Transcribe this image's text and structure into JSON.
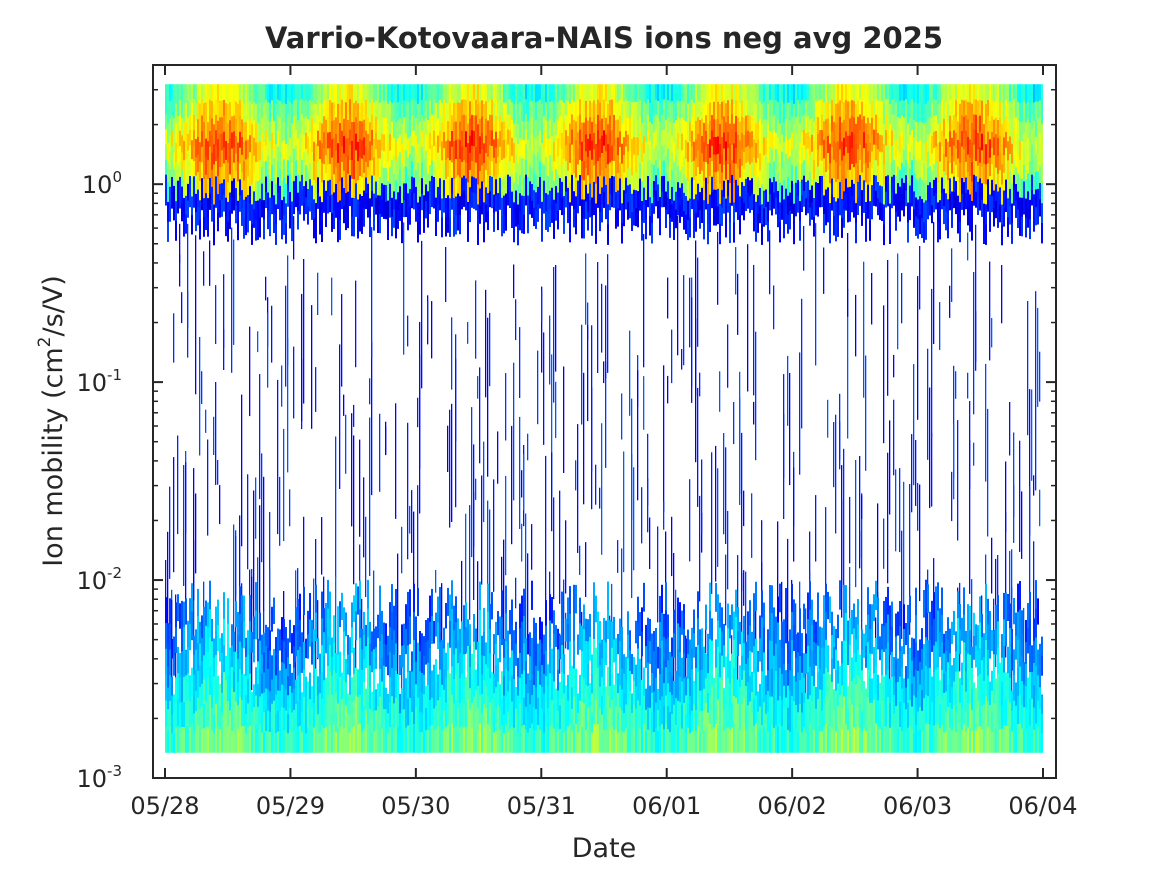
{
  "chart_data": {
    "type": "heatmap",
    "title": "Varrio-Kotovaara-NAIS ions neg avg 2025",
    "xlabel": "Date",
    "ylabel_main": "Ion mobility (cm",
    "ylabel_sup": "2",
    "ylabel_tail": "/s/V)",
    "x_ticks": [
      "05/28",
      "05/29",
      "05/30",
      "05/31",
      "06/01",
      "06/02",
      "06/03",
      "06/04"
    ],
    "y_scale": "log",
    "ylim": [
      0.001,
      4
    ],
    "y_ticks": [
      {
        "base": "10",
        "exp": "-3",
        "value": 0.001
      },
      {
        "base": "10",
        "exp": "-2",
        "value": 0.01
      },
      {
        "base": "10",
        "exp": "-1",
        "value": 0.1
      },
      {
        "base": "10",
        "exp": "0",
        "value": 1
      }
    ],
    "data_extent_y": [
      0.00135,
      3.2
    ],
    "colormap": "jet",
    "description_note": "Concentrations high near mobility ~0.7-3 and near ~0.0013-0.005; sparse streaks in between"
  }
}
